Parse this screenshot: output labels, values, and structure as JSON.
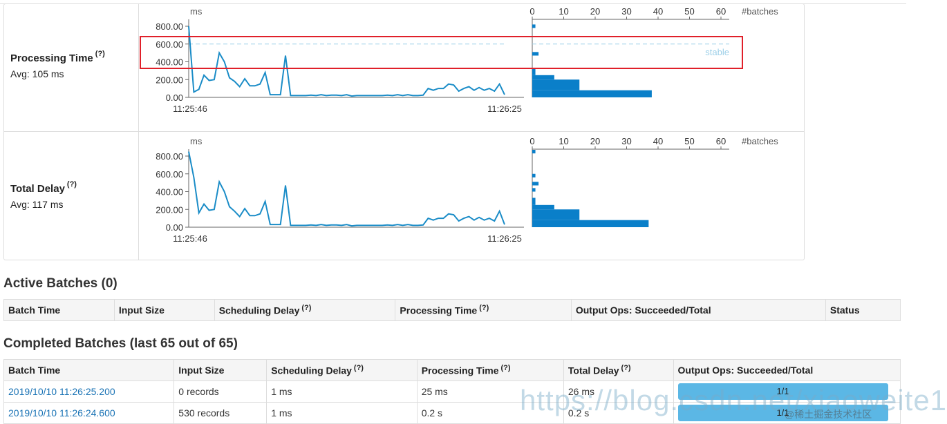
{
  "stats": {
    "processing": {
      "name": "Processing Time",
      "help": "(?)",
      "avg": "Avg: 105 ms",
      "y_unit": "ms",
      "y_ticks": [
        "800.00",
        "600.00",
        "400.00",
        "200.00",
        "0.00"
      ],
      "x_start": "11:25:46",
      "x_end": "11:26:25",
      "hist_label": "#batches",
      "hist_ticks": [
        "0",
        "10",
        "20",
        "30",
        "40",
        "50",
        "60"
      ],
      "stable_label": "stable",
      "stable_value": 600,
      "series": [
        800,
        60,
        90,
        250,
        190,
        200,
        500,
        400,
        220,
        180,
        120,
        210,
        130,
        130,
        150,
        280,
        30,
        30,
        30,
        470,
        20,
        20,
        20,
        20,
        25,
        20,
        30,
        20,
        25,
        25,
        20,
        30,
        15,
        20,
        20,
        20,
        20,
        20,
        20,
        25,
        20,
        30,
        20,
        30,
        20,
        20,
        25,
        100,
        80,
        100,
        100,
        150,
        140,
        70,
        100,
        120,
        80,
        110,
        80,
        100,
        70,
        150,
        30
      ],
      "hist_bins": [
        {
          "value": 20,
          "count": 1
        },
        {
          "value": 80,
          "count": 0
        },
        {
          "value": 150,
          "count": 0
        },
        {
          "value": 280,
          "count": 1
        },
        {
          "value": 480,
          "count": 2
        },
        {
          "value": 600,
          "count": 0
        },
        {
          "value": 760,
          "count": 1
        }
      ],
      "hist_main": [
        {
          "from": 0,
          "to": 80,
          "count": 38
        },
        {
          "from": 80,
          "to": 200,
          "count": 15
        },
        {
          "from": 200,
          "to": 250,
          "count": 7
        },
        {
          "from": 250,
          "to": 330,
          "count": 1
        },
        {
          "from": 470,
          "to": 510,
          "count": 2
        },
        {
          "from": 780,
          "to": 820,
          "count": 1
        }
      ]
    },
    "delay": {
      "name": "Total Delay",
      "help": "(?)",
      "avg": "Avg: 117 ms",
      "y_unit": "ms",
      "y_ticks": [
        "800.00",
        "600.00",
        "400.00",
        "200.00",
        "0.00"
      ],
      "x_start": "11:25:46",
      "x_end": "11:26:25",
      "hist_label": "#batches",
      "hist_ticks": [
        "0",
        "10",
        "20",
        "30",
        "40",
        "50",
        "60"
      ],
      "series": [
        850,
        560,
        160,
        260,
        190,
        200,
        510,
        400,
        230,
        180,
        120,
        210,
        130,
        130,
        150,
        290,
        30,
        30,
        30,
        470,
        20,
        20,
        20,
        20,
        25,
        20,
        30,
        20,
        25,
        25,
        20,
        30,
        15,
        20,
        20,
        20,
        20,
        20,
        20,
        25,
        20,
        30,
        20,
        30,
        20,
        20,
        25,
        100,
        80,
        100,
        100,
        150,
        140,
        70,
        100,
        120,
        80,
        110,
        80,
        100,
        70,
        180,
        30
      ],
      "hist_main": [
        {
          "from": 0,
          "to": 80,
          "count": 37
        },
        {
          "from": 80,
          "to": 200,
          "count": 15
        },
        {
          "from": 200,
          "to": 250,
          "count": 7
        },
        {
          "from": 250,
          "to": 330,
          "count": 1
        },
        {
          "from": 400,
          "to": 440,
          "count": 1
        },
        {
          "from": 470,
          "to": 510,
          "count": 2
        },
        {
          "from": 560,
          "to": 600,
          "count": 1
        },
        {
          "from": 830,
          "to": 870,
          "count": 1
        }
      ]
    }
  },
  "active": {
    "title": "Active Batches (0)",
    "headers": [
      "Batch Time",
      "Input Size",
      "Scheduling Delay",
      "Processing Time",
      "Output Ops: Succeeded/Total",
      "Status"
    ],
    "help": "(?)"
  },
  "completed": {
    "title": "Completed Batches (last 65 out of 65)",
    "headers": [
      "Batch Time",
      "Input Size",
      "Scheduling Delay",
      "Processing Time",
      "Total Delay",
      "Output Ops: Succeeded/Total"
    ],
    "help": "(?)",
    "rows": [
      {
        "batch_time": "2019/10/10 11:26:25.200",
        "input": "0 records",
        "sched": "1 ms",
        "proc": "25 ms",
        "total": "26 ms",
        "ops": "1/1"
      },
      {
        "batch_time": "2019/10/10 11:26:24.600",
        "input": "530 records",
        "sched": "1 ms",
        "proc": "0.2 s",
        "total": "0.2 s",
        "ops": "1/1"
      }
    ]
  },
  "watermark": "https://blog.csdn.net/xiaoweite1",
  "watermark2": "@稀土掘金技术社区",
  "colors": {
    "line": "#1a8cc7",
    "bar": "#0a7fc9",
    "stable": "#9ccfe8",
    "highlight": "#e0202a",
    "link": "#1a73b5"
  }
}
